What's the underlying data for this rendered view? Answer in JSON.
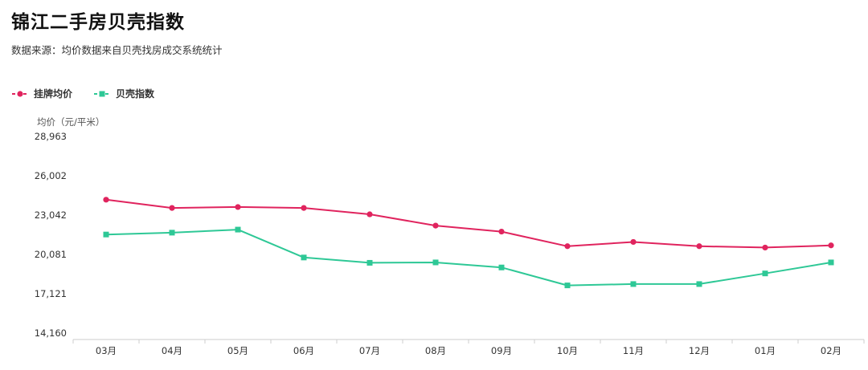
{
  "header": {
    "title": "锦江二手房贝壳指数",
    "subtitle": "数据来源：均价数据来自贝壳找房成交系统统计"
  },
  "colors": {
    "series_listing": "#e0245e",
    "series_index": "#2ec896",
    "axis": "#cccccc"
  },
  "chart_data": {
    "type": "line",
    "title": "锦江二手房贝壳指数",
    "ylabel": "均价（元/平米）",
    "xlabel": "",
    "categories": [
      "03月",
      "04月",
      "05月",
      "06月",
      "07月",
      "08月",
      "09月",
      "10月",
      "11月",
      "12月",
      "01月",
      "02月"
    ],
    "y_ticks": [
      "28,963",
      "26,002",
      "23,042",
      "20,081",
      "17,121",
      "14,160"
    ],
    "ylim": [
      14160,
      28963
    ],
    "grid": false,
    "legend_position": "top-left",
    "series": [
      {
        "name": "挂牌均价",
        "marker": "circle",
        "values": [
          24200,
          23580,
          23650,
          23580,
          23100,
          22250,
          21800,
          20700,
          21020,
          20700,
          20600,
          20760
        ]
      },
      {
        "name": "贝壳指数",
        "marker": "square",
        "values": [
          21580,
          21720,
          21950,
          19850,
          19450,
          19480,
          19100,
          17750,
          17850,
          17850,
          18650,
          19480
        ]
      }
    ]
  }
}
